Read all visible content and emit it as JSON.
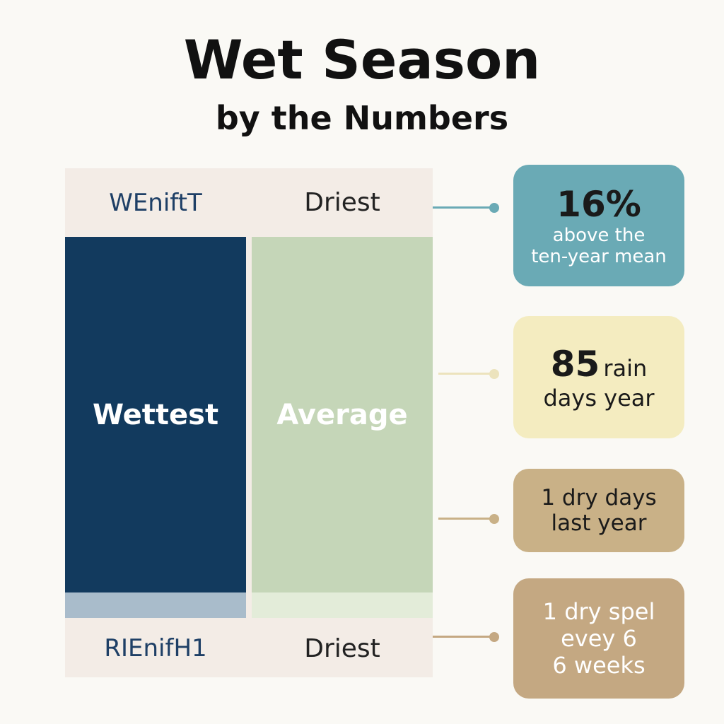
{
  "header": {
    "title": "Wet Season",
    "subtitle": "by the Numbers"
  },
  "table": {
    "top": [
      "WEniftT",
      "Driest"
    ],
    "middle": [
      "Wettest",
      "Average"
    ],
    "bottom": [
      "RIEnifH1",
      "Driest"
    ]
  },
  "callouts": [
    {
      "lines": [
        "16%",
        "above the",
        "ten-year mean"
      ]
    },
    {
      "lines": [
        "85",
        "rain",
        "days year"
      ]
    },
    {
      "lines": [
        "1 dry days",
        "last year"
      ]
    },
    {
      "lines": [
        "1 dry spel",
        "evey 6",
        "6 weeks"
      ]
    }
  ]
}
